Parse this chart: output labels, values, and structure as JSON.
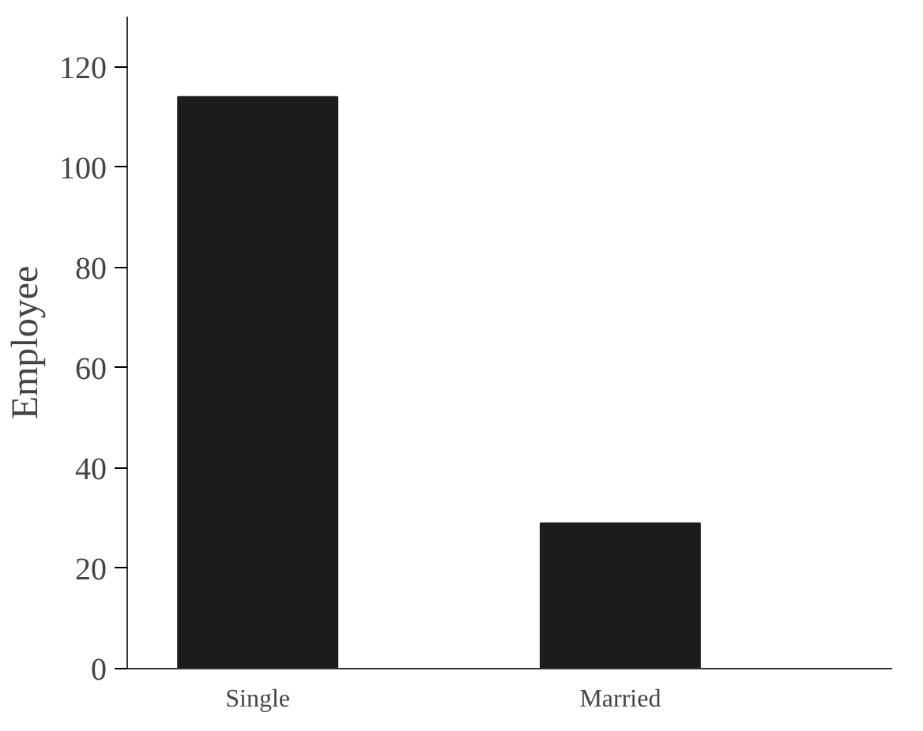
{
  "chart_data": {
    "type": "bar",
    "ylabel": "Employee",
    "categories": [
      "Single",
      "Married"
    ],
    "values": [
      114,
      29
    ],
    "color": "#1e1b1c",
    "ylim": [
      0,
      130
    ],
    "yticks": [
      0,
      20,
      40,
      60,
      80,
      100,
      120
    ],
    "grid": false
  }
}
